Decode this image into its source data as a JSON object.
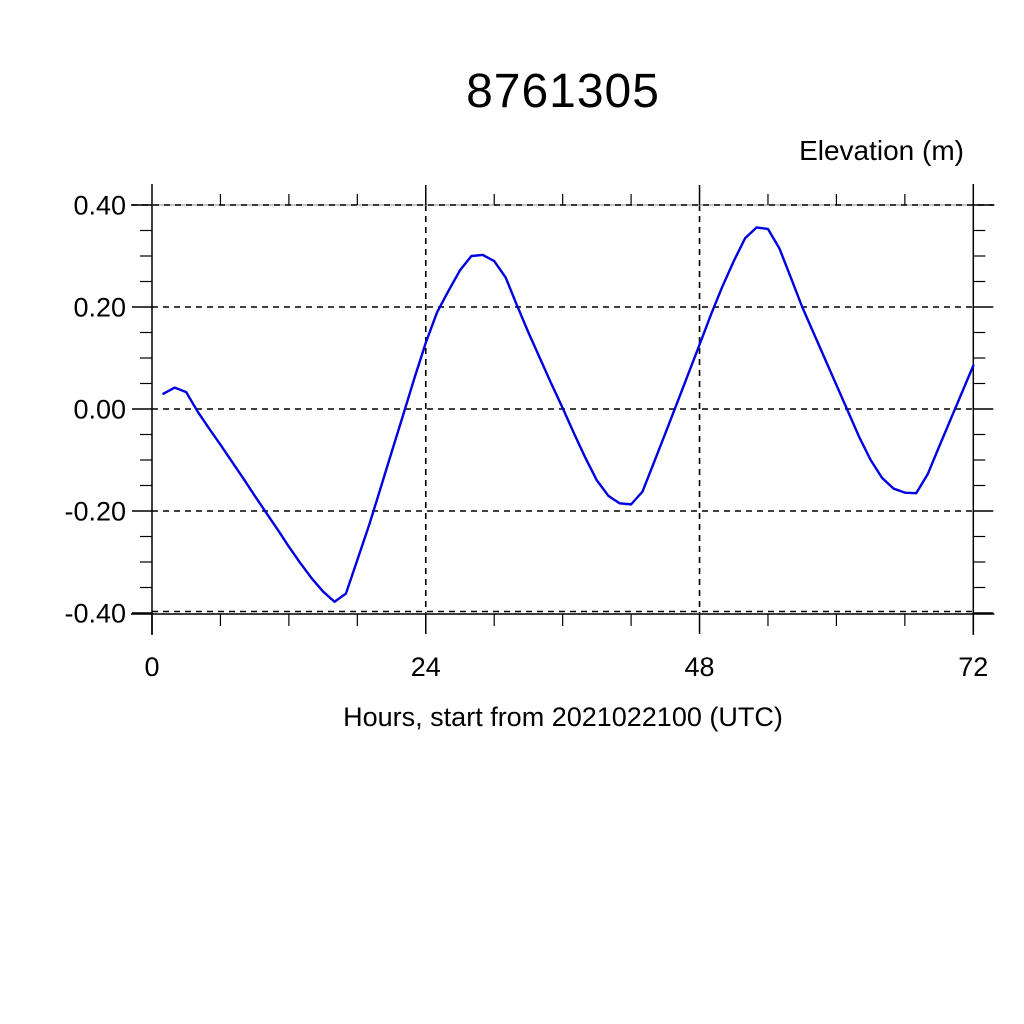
{
  "figure": {
    "background": "#ffffff"
  },
  "chart_data": {
    "type": "line",
    "title": "8761305",
    "ylabel": "Elevation (m)",
    "xlabel": "Hours, start from 2021022100 (UTC)",
    "xlim": [
      0,
      72
    ],
    "ylim": [
      -0.4,
      0.4
    ],
    "x_major_ticks": [
      0,
      24,
      48,
      72
    ],
    "x_tick_labels": [
      "0",
      "24",
      "48",
      "72"
    ],
    "x_minor_step": 6,
    "y_major_ticks": [
      0.4,
      0.2,
      0.0,
      -0.2,
      -0.4
    ],
    "y_tick_labels": [
      "0.40",
      "0.20",
      "0.00",
      "-0.20",
      "-0.40"
    ],
    "y_minor_step": 0.05,
    "grid": "dashed lines at all major ticks, box frame with outward ticks, spines overshoot corners",
    "legend": "none",
    "line_color": "#0000e0",
    "axis_color": "#000000",
    "series": [
      {
        "name": "elevation",
        "x": [
          1,
          2,
          3,
          4,
          5,
          6,
          7,
          8,
          9,
          10,
          11,
          12,
          13,
          14,
          15,
          16,
          17,
          18,
          19,
          20,
          21,
          22,
          23,
          24,
          25,
          26,
          27,
          28,
          29,
          30,
          31,
          32,
          33,
          34,
          35,
          36,
          37,
          38,
          39,
          40,
          41,
          42,
          43,
          44,
          45,
          46,
          47,
          48,
          49,
          50,
          51,
          52,
          53,
          54,
          55,
          56,
          57,
          58,
          59,
          60,
          61,
          62,
          63,
          64,
          65,
          66,
          67,
          68,
          69,
          70,
          71,
          72
        ],
        "y": [
          0.03,
          0.042,
          0.033,
          -0.005,
          -0.038,
          -0.07,
          -0.103,
          -0.136,
          -0.17,
          -0.203,
          -0.236,
          -0.27,
          -0.302,
          -0.332,
          -0.358,
          -0.378,
          -0.362,
          -0.296,
          -0.23,
          -0.158,
          -0.085,
          -0.013,
          0.06,
          0.13,
          0.19,
          0.232,
          0.272,
          0.3,
          0.302,
          0.29,
          0.258,
          0.203,
          0.15,
          0.1,
          0.05,
          0.002,
          -0.048,
          -0.096,
          -0.14,
          -0.17,
          -0.185,
          -0.187,
          -0.162,
          -0.105,
          -0.048,
          0.01,
          0.068,
          0.126,
          0.185,
          0.24,
          0.29,
          0.335,
          0.356,
          0.353,
          0.315,
          0.258,
          0.2,
          0.149,
          0.098,
          0.047,
          -0.004,
          -0.055,
          -0.1,
          -0.135,
          -0.156,
          -0.164,
          -0.165,
          -0.128,
          -0.074,
          -0.021,
          0.032,
          0.085
        ]
      }
    ]
  }
}
